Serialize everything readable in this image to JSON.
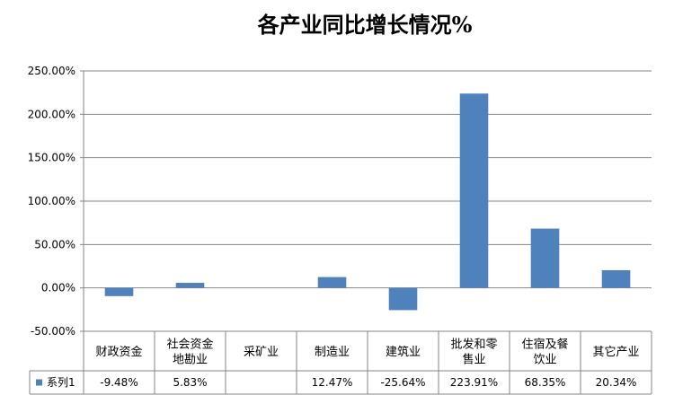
{
  "chart_data": {
    "type": "bar",
    "title": "各产业同比增长情况%",
    "categories": [
      [
        "财政资金"
      ],
      [
        "社会资金",
        "地勘业"
      ],
      [
        "采矿业"
      ],
      [
        "制造业"
      ],
      [
        "建筑业"
      ],
      [
        "批发和零",
        "售业"
      ],
      [
        "住宿及餐",
        "饮业"
      ],
      [
        "其它产业"
      ]
    ],
    "series": [
      {
        "name": "系列1",
        "values": [
          -9.48,
          5.83,
          null,
          12.47,
          -25.64,
          223.91,
          68.35,
          20.34
        ],
        "labels": [
          "-9.48%",
          "5.83%",
          "",
          "12.47%",
          "-25.64%",
          "223.91%",
          "68.35%",
          "20.34%"
        ],
        "color": "#4F81BD"
      }
    ],
    "yticks": [
      "250.00%",
      "200.00%",
      "150.00%",
      "100.00%",
      "50.00%",
      "0.00%",
      "-50.00%"
    ],
    "ylim": [
      -50,
      250
    ],
    "grid": true,
    "legend": "data-table"
  }
}
